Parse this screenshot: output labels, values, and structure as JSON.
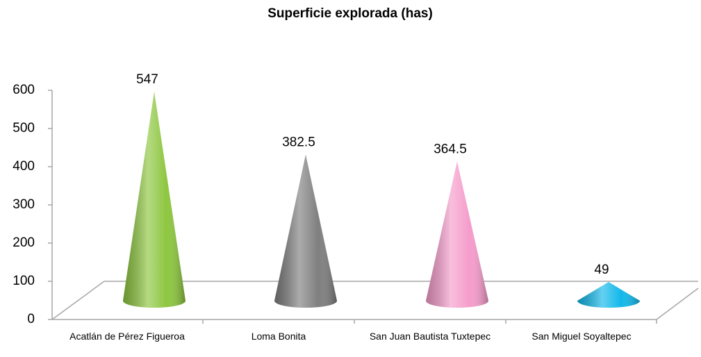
{
  "chart_data": {
    "type": "cone",
    "title": "Superficie explorada (has)",
    "categories": [
      "Acatlán de Pérez Figueroa",
      "Loma Bonita",
      "San Juan Bautista Tuxtepec",
      "San Miguel Soyaltepec"
    ],
    "values": [
      547,
      382.5,
      364.5,
      49
    ],
    "colors": [
      "#8dc63f",
      "#7f7f7f",
      "#f59ccb",
      "#12b8ea"
    ],
    "ylim": [
      0,
      600
    ],
    "yticks": [
      0,
      100,
      200,
      300,
      400,
      500,
      600
    ]
  }
}
